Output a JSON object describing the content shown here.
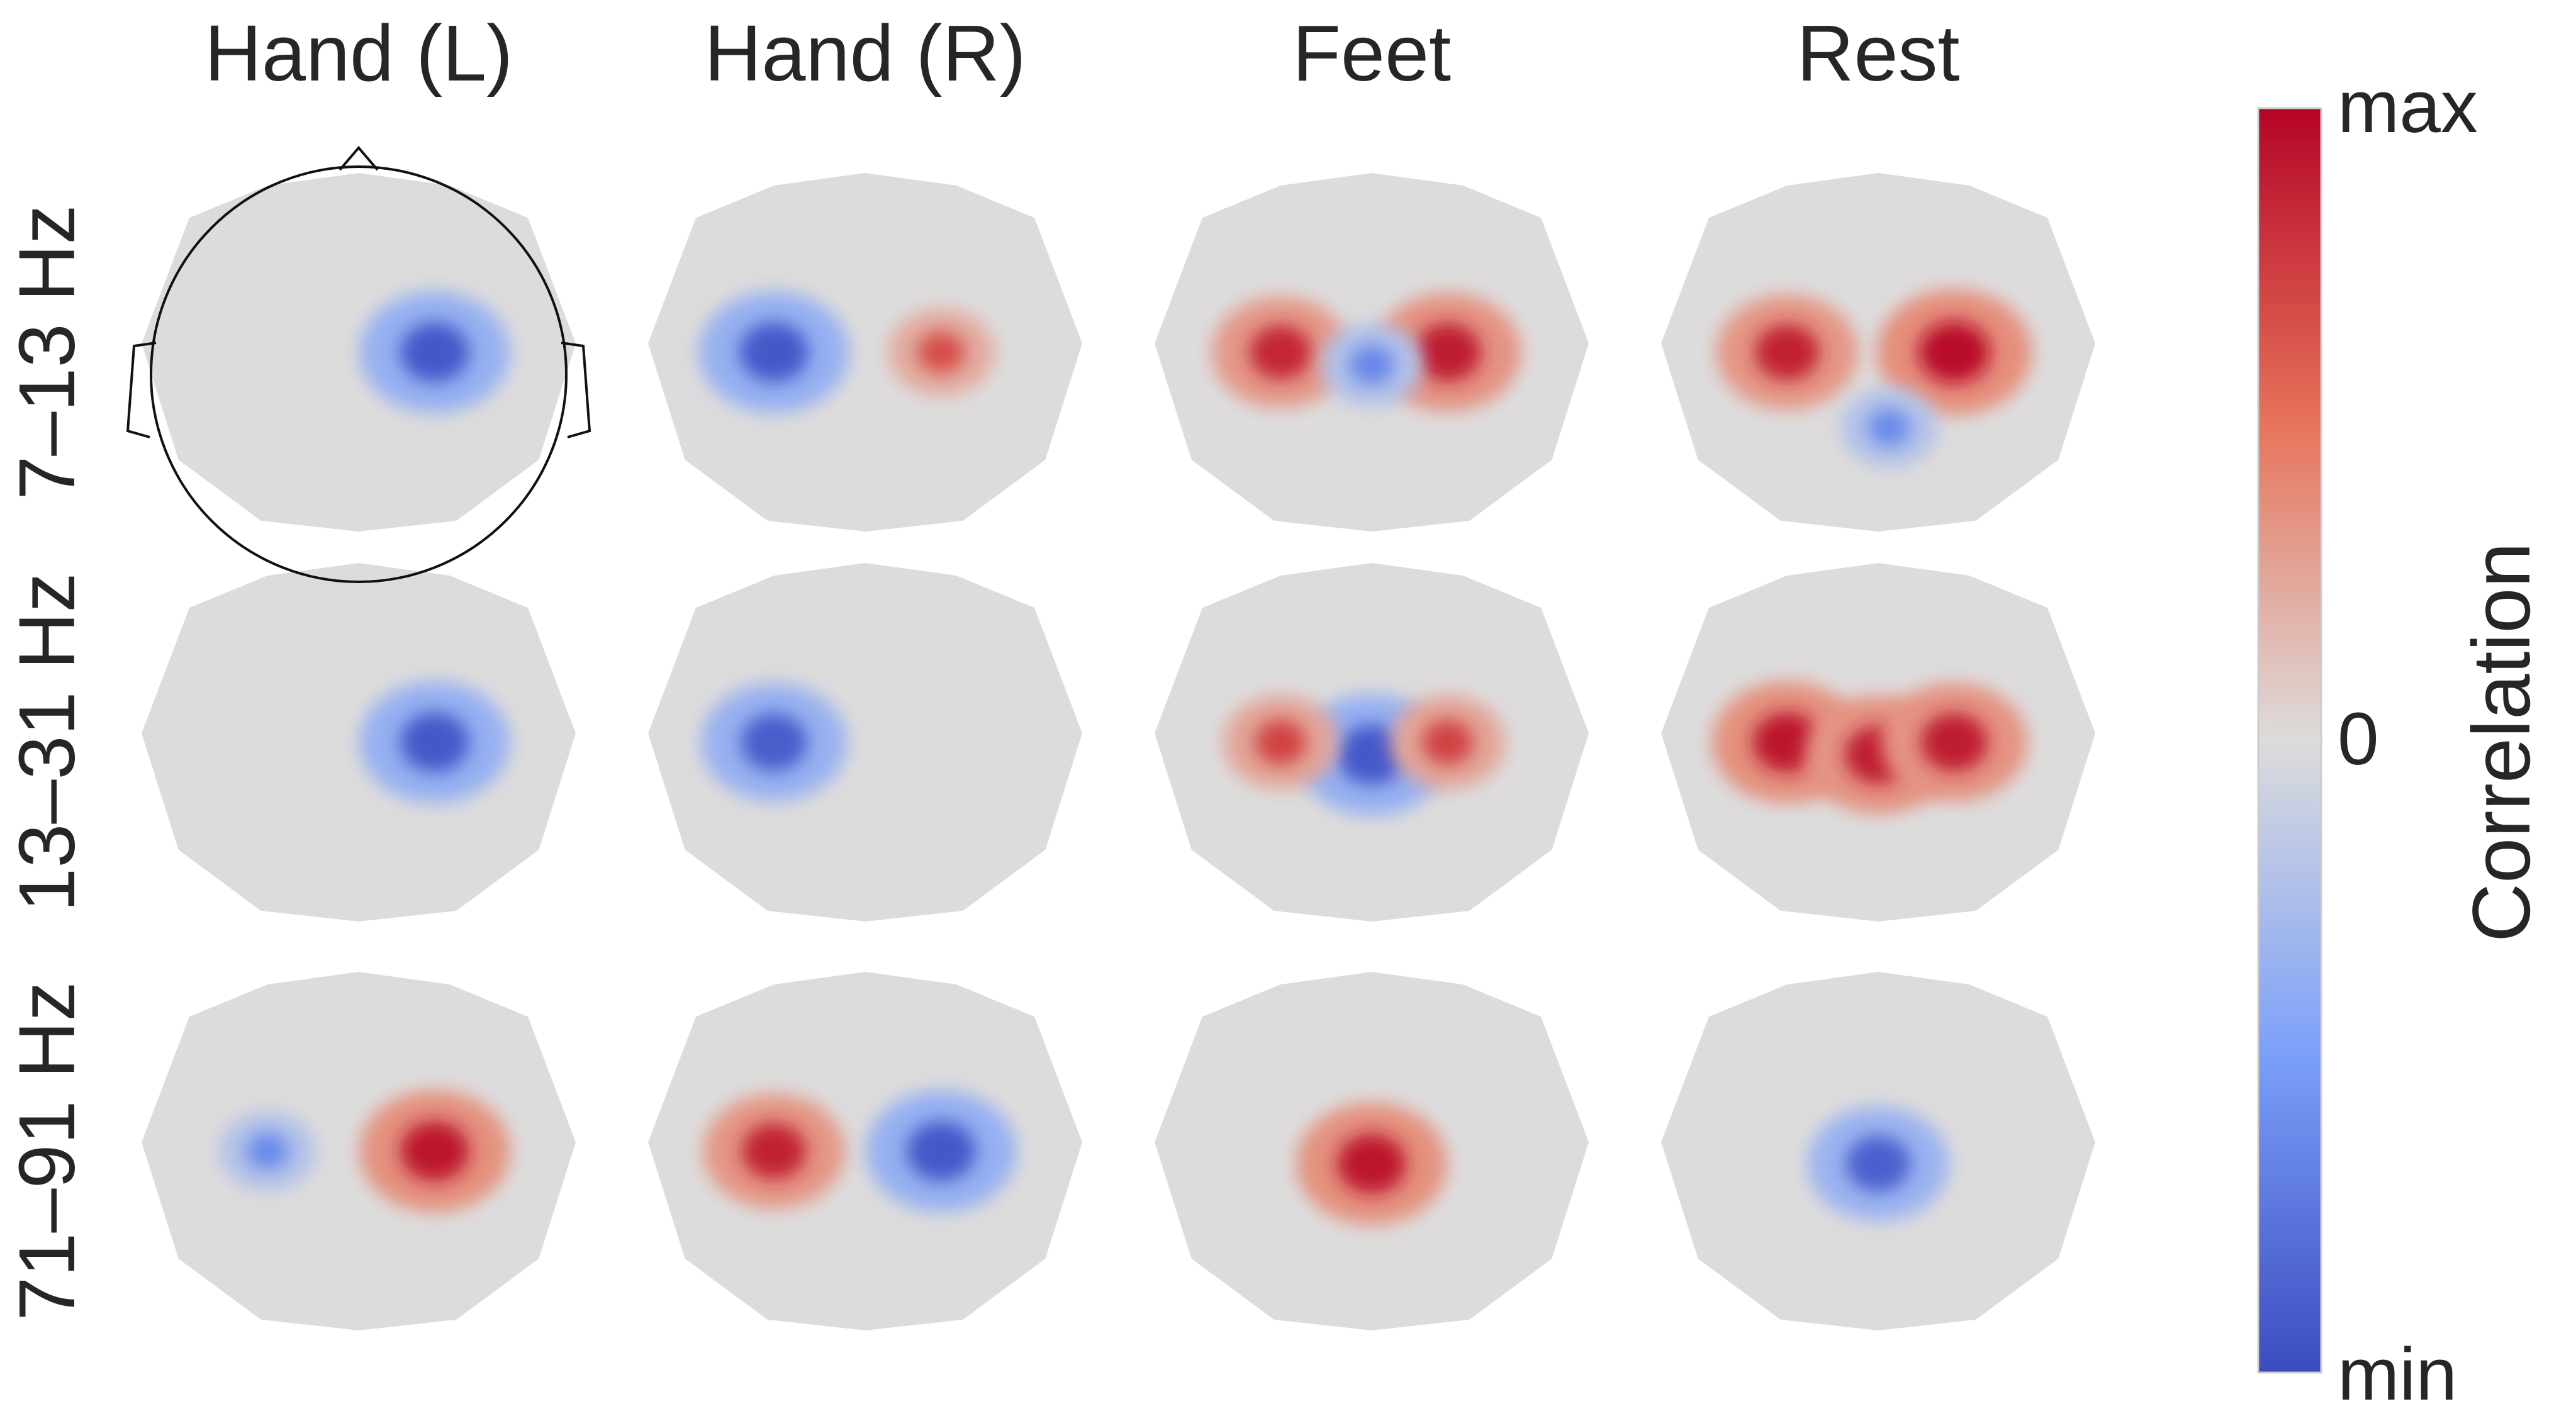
{
  "columns": [
    "Hand (L)",
    "Hand (R)",
    "Feet",
    "Rest"
  ],
  "rows": [
    "7–13 Hz",
    "13–31 Hz",
    "71–91 Hz"
  ],
  "colorbar": {
    "label": "Correlation",
    "ticks": {
      "max": "max",
      "zero": "0",
      "min": "min"
    },
    "colors": {
      "max": "#b40426",
      "high": "#e7745b",
      "mid": "#dddcdc",
      "low": "#7b9ff9",
      "min": "#3b4cc0"
    }
  },
  "maps": [
    [
      [
        {
          "sign": -1,
          "strength": 0.85,
          "spot": "right-central"
        }
      ],
      [
        {
          "sign": -1,
          "strength": 0.85,
          "spot": "left-central"
        },
        {
          "sign": 1,
          "strength": 0.35,
          "spot": "right-central"
        }
      ],
      [
        {
          "sign": 1,
          "strength": 0.7,
          "spot": "left-central"
        },
        {
          "sign": 1,
          "strength": 0.8,
          "spot": "right-central"
        },
        {
          "sign": -1,
          "strength": 0.3,
          "spot": "center"
        }
      ],
      [
        {
          "sign": 1,
          "strength": 0.75,
          "spot": "left-central"
        },
        {
          "sign": 1,
          "strength": 0.9,
          "spot": "right-central"
        },
        {
          "sign": -1,
          "strength": 0.25,
          "spot": "posterior"
        }
      ]
    ],
    [
      [
        {
          "sign": -1,
          "strength": 0.85,
          "spot": "right-central"
        }
      ],
      [
        {
          "sign": -1,
          "strength": 0.8,
          "spot": "left-central"
        }
      ],
      [
        {
          "sign": -1,
          "strength": 0.85,
          "spot": "center"
        },
        {
          "sign": 1,
          "strength": 0.45,
          "spot": "left-central"
        },
        {
          "sign": 1,
          "strength": 0.45,
          "spot": "right-central"
        }
      ],
      [
        {
          "sign": 1,
          "strength": 0.85,
          "spot": "left-central"
        },
        {
          "sign": 1,
          "strength": 0.8,
          "spot": "center"
        },
        {
          "sign": 1,
          "strength": 0.8,
          "spot": "right-central"
        }
      ]
    ],
    [
      [
        {
          "sign": 1,
          "strength": 0.85,
          "spot": "right-central"
        },
        {
          "sign": -1,
          "strength": 0.25,
          "spot": "left-central"
        }
      ],
      [
        {
          "sign": 1,
          "strength": 0.75,
          "spot": "left-central"
        },
        {
          "sign": -1,
          "strength": 0.85,
          "spot": "right-central"
        }
      ],
      [
        {
          "sign": 1,
          "strength": 0.85,
          "spot": "center"
        }
      ],
      [
        {
          "sign": -1,
          "strength": 0.75,
          "spot": "center"
        }
      ]
    ]
  ]
}
